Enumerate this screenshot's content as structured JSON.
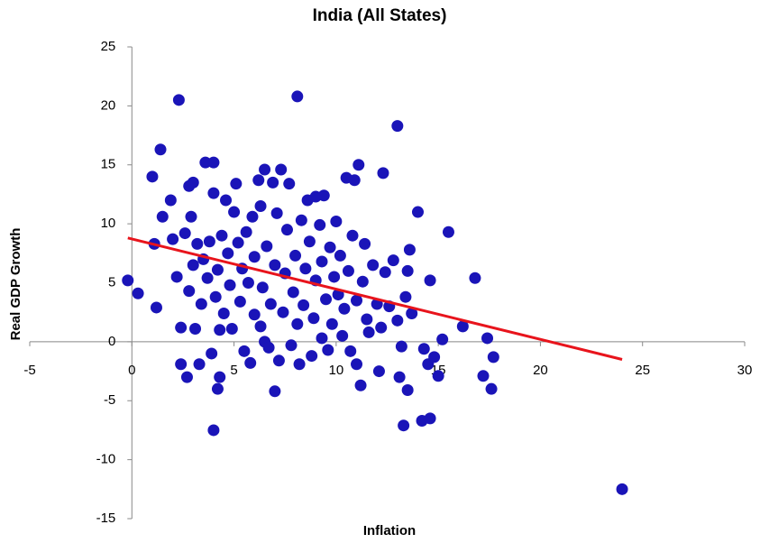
{
  "chart_data": {
    "type": "scatter",
    "title": "India (All States)",
    "x_label": "Inflation",
    "y_label": "Real GDP Growth",
    "xlim": [
      -5,
      30
    ],
    "xticks": [
      -5,
      0,
      5,
      10,
      15,
      20,
      25,
      30
    ],
    "ylim": [
      -15,
      25
    ],
    "yticks": [
      -15,
      -10,
      -5,
      0,
      5,
      10,
      15,
      20,
      25
    ],
    "grid": false,
    "series": [
      {
        "type": "scatter",
        "color": "#1a14b8",
        "x": [
          -0.2,
          0.3,
          1,
          1.1,
          1.2,
          1.4,
          1.5,
          1.9,
          2,
          2.2,
          2.3,
          2.4,
          2.4,
          2.6,
          2.7,
          2.8,
          2.8,
          2.9,
          3,
          3,
          3.1,
          3.2,
          3.3,
          3.4,
          3.5,
          3.6,
          3.7,
          3.8,
          3.9,
          4,
          4,
          4,
          4.1,
          4.2,
          4.2,
          4.3,
          4.3,
          4.4,
          4.5,
          4.6,
          4.7,
          4.8,
          4.9,
          5,
          5.1,
          5.2,
          5.3,
          5.4,
          5.5,
          5.6,
          5.7,
          5.8,
          5.9,
          6,
          6,
          6.2,
          6.3,
          6.3,
          6.4,
          6.5,
          6.5,
          6.6,
          6.7,
          6.8,
          6.9,
          7,
          7,
          7.1,
          7.2,
          7.3,
          7.4,
          7.5,
          7.6,
          7.7,
          7.8,
          7.9,
          8,
          8.1,
          8.1,
          8.2,
          8.3,
          8.4,
          8.5,
          8.6,
          8.7,
          8.8,
          8.9,
          9,
          9,
          9.2,
          9.3,
          9.3,
          9.4,
          9.5,
          9.6,
          9.7,
          9.8,
          9.9,
          10,
          10.1,
          10.2,
          10.3,
          10.4,
          10.5,
          10.6,
          10.7,
          10.8,
          10.9,
          11,
          11,
          11.1,
          11.2,
          11.3,
          11.4,
          11.5,
          11.6,
          11.8,
          12,
          12.1,
          12.2,
          12.3,
          12.4,
          12.6,
          12.8,
          13,
          13,
          13.1,
          13.2,
          13.3,
          13.4,
          13.5,
          13.5,
          13.6,
          13.7,
          14,
          14.2,
          14.3,
          14.5,
          14.6,
          14.6,
          14.8,
          15,
          15.2,
          15.5,
          16.2,
          16.8,
          17.2,
          17.4,
          17.6,
          17.7,
          24
        ],
        "values": [
          5.2,
          4.1,
          14,
          8.3,
          2.9,
          16.3,
          10.6,
          12,
          8.7,
          5.5,
          20.5,
          1.2,
          -1.9,
          9.2,
          -3,
          13.2,
          4.3,
          10.6,
          6.5,
          13.5,
          1.1,
          8.3,
          -1.9,
          3.2,
          7,
          15.2,
          5.4,
          8.5,
          -1,
          12.6,
          15.2,
          -7.5,
          3.8,
          6.1,
          -4,
          -3,
          1,
          9,
          2.4,
          12,
          7.5,
          4.8,
          1.1,
          11,
          13.4,
          8.4,
          3.4,
          6.2,
          -0.8,
          9.3,
          5,
          -1.8,
          10.6,
          2.3,
          7.2,
          13.7,
          1.3,
          11.5,
          4.6,
          14.6,
          0,
          8.1,
          -0.5,
          3.2,
          13.5,
          -4.2,
          6.5,
          10.9,
          -1.6,
          14.6,
          2.5,
          5.8,
          9.5,
          13.4,
          -0.3,
          4.2,
          7.3,
          20.8,
          1.5,
          -1.9,
          10.3,
          3.1,
          6.2,
          12,
          8.5,
          -1.2,
          2,
          5.2,
          12.3,
          9.9,
          0.3,
          6.8,
          12.4,
          3.6,
          -0.7,
          8,
          1.5,
          5.5,
          10.2,
          4,
          7.3,
          0.5,
          2.8,
          13.9,
          6,
          -0.8,
          9,
          13.7,
          -1.9,
          3.5,
          15,
          -3.7,
          5.1,
          8.3,
          1.9,
          0.8,
          6.5,
          3.2,
          -2.5,
          1.2,
          14.3,
          5.9,
          3,
          6.9,
          18.3,
          1.8,
          -3,
          -0.4,
          -7.1,
          3.8,
          -4.1,
          6,
          7.8,
          2.4,
          11,
          -6.7,
          -0.6,
          -1.9,
          -6.5,
          5.2,
          -1.3,
          -2.9,
          0.2,
          9.3,
          1.3,
          5.4,
          -2.9,
          0.3,
          -4,
          -1.3,
          -12.5
        ]
      },
      {
        "type": "line",
        "color": "#e8141c",
        "x": [
          -0.2,
          24
        ],
        "values": [
          8.8,
          -1.5
        ]
      }
    ]
  }
}
